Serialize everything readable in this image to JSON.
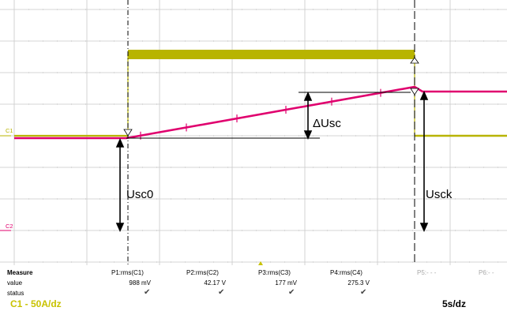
{
  "colors": {
    "grid": "#c8c8c8",
    "channel1": "#b8b400",
    "channel2": "#e0006e",
    "cursor": "#000000",
    "channel_text": "#c8c200"
  },
  "markers": {
    "c1": "C1",
    "c2": "C2",
    "trigger_marker": "trigger-marker-icon"
  },
  "annotations": {
    "delta_usc": "ΔUsc",
    "usc0": "Usc0",
    "usck": "Usck"
  },
  "measure": {
    "headers": [
      "Measure",
      "value",
      "status"
    ],
    "params": [
      {
        "name": "P1:rms(C1)",
        "value": "988 mV",
        "status": "✔"
      },
      {
        "name": "P2:rms(C2)",
        "value": "42.17 V",
        "status": "✔"
      },
      {
        "name": "P3:rms(C3)",
        "value": "177 mV",
        "status": "✔"
      },
      {
        "name": "P4:rms(C4)",
        "value": "275.3 V",
        "status": "✔"
      },
      {
        "name": "P5:- - -",
        "value": "",
        "status": ""
      },
      {
        "name": "P6:- -",
        "value": "",
        "status": ""
      }
    ]
  },
  "footer": {
    "channel_scale": "C1 - 50A/dz",
    "timebase": "5s/dz"
  }
}
